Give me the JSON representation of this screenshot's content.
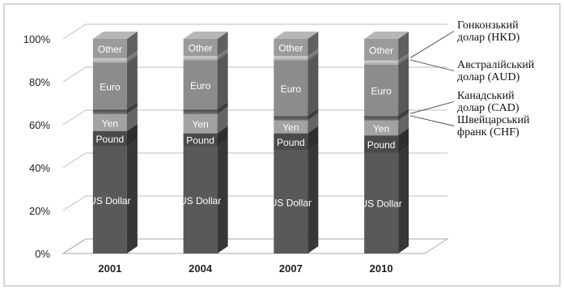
{
  "chart_data": {
    "type": "bar",
    "stacked": true,
    "three_d": true,
    "categories": [
      "2001",
      "2004",
      "2007",
      "2010"
    ],
    "ylim": [
      0,
      100
    ],
    "y_ticks": [
      "0%",
      "20%",
      "40%",
      "60%",
      "80%",
      "100%"
    ],
    "grid": true,
    "series": [
      {
        "name": "US Dollar",
        "values": [
          50,
          50,
          48,
          47
        ],
        "color": "#595959",
        "text_color": "#ffffff"
      },
      {
        "name": "Pound",
        "values": [
          7,
          6,
          8,
          8
        ],
        "color": "#4a4a4a",
        "text_color": "#ffffff"
      },
      {
        "name": "Yen",
        "values": [
          8,
          9,
          6,
          7
        ],
        "color": "#a2a2a2",
        "text_color": "#ffffff"
      },
      {
        "name": "CHF",
        "values": [
          1,
          1,
          1,
          1
        ],
        "color": "#666666",
        "text_color": null
      },
      {
        "name": "CAD",
        "values": [
          1,
          1,
          1,
          1
        ],
        "color": "#555555",
        "text_color": null
      },
      {
        "name": "Euro",
        "values": [
          22,
          23,
          26,
          24
        ],
        "color": "#8c8c8c",
        "text_color": "#ffffff"
      },
      {
        "name": "AUD",
        "values": [
          1,
          1,
          1,
          1
        ],
        "color": "#b2b2b2",
        "text_color": null
      },
      {
        "name": "HKD",
        "values": [
          1,
          1,
          1,
          1
        ],
        "color": "#c6c6c6",
        "text_color": null
      },
      {
        "name": "Other",
        "values": [
          9,
          8,
          8,
          10
        ],
        "color": "#9b9b9b",
        "text_color": "#ffffff"
      }
    ],
    "annotations": [
      {
        "key": "HKD",
        "lines": [
          "Гонконзький",
          "долар  (HKD)"
        ]
      },
      {
        "key": "AUD",
        "lines": [
          "Австралійський",
          "долар  (AUD)"
        ]
      },
      {
        "key": "CAD",
        "lines": [
          "Канадський",
          "долар  (CAD)"
        ]
      },
      {
        "key": "CHF",
        "lines": [
          "Швейцарський",
          "франк  (CHF)"
        ]
      }
    ]
  }
}
